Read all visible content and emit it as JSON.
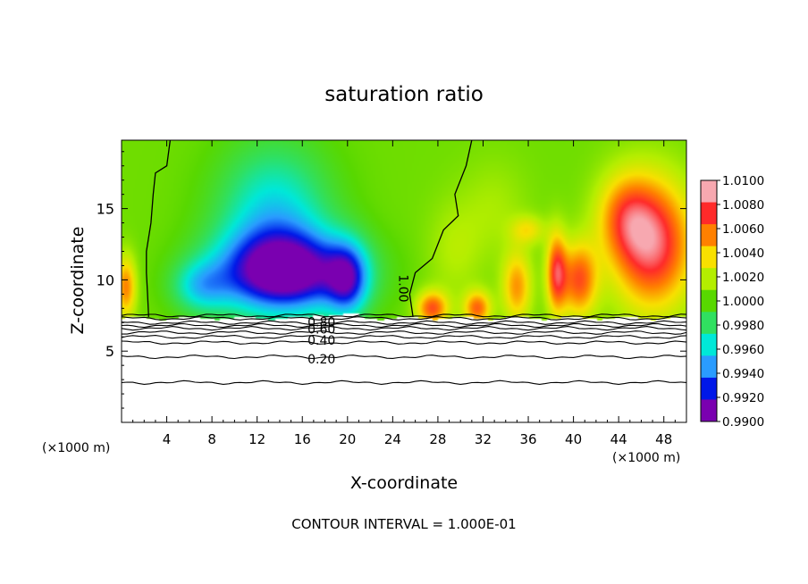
{
  "chart_data": {
    "type": "heatmap",
    "title": "saturation ratio",
    "xlabel": "X-coordinate",
    "ylabel": "Z-coordinate",
    "x_unit_left": "(×1000 m)",
    "x_unit_right": "(×1000 m)",
    "xlim": [
      0,
      50
    ],
    "ylim": [
      0,
      19.8
    ],
    "x_ticks": [
      4,
      8,
      12,
      16,
      20,
      24,
      28,
      32,
      36,
      40,
      44,
      48
    ],
    "y_ticks": [
      5,
      10,
      15
    ],
    "footer": "CONTOUR INTERVAL = 1.000E-01",
    "colorbar": {
      "labels": [
        "1.0100",
        "1.0080",
        "1.0060",
        "1.0040",
        "1.0020",
        "1.0000",
        "0.9980",
        "0.9960",
        "0.9940",
        "0.9920",
        "0.9900"
      ],
      "colors": [
        "#f7a8b0",
        "#ff2a2a",
        "#ff8000",
        "#f8e000",
        "#b4ee00",
        "#58d800",
        "#30e060",
        "#00e8d8",
        "#2a9cff",
        "#0018e8",
        "#7a00b0"
      ]
    },
    "contour_labels": [
      {
        "text": "0.80",
        "x": 17.7,
        "z": 7.0
      },
      {
        "text": "0.60",
        "x": 17.7,
        "z": 6.5
      },
      {
        "text": "0.40",
        "x": 17.7,
        "z": 5.7
      },
      {
        "text": "0.20",
        "x": 17.7,
        "z": 4.4
      },
      {
        "text": "1.00",
        "x": 24.9,
        "z": 9.4
      }
    ],
    "contour_lines_z": [
      7.5,
      7.3,
      7.0,
      6.8,
      6.6,
      6.3,
      6.0,
      5.6,
      4.6,
      2.8
    ],
    "saturation_base_z": 7.3,
    "blobs": [
      {
        "x": 14.5,
        "z": 10.5,
        "rx": 6.0,
        "rz": 2.8,
        "v": -0.011
      },
      {
        "x": 13.5,
        "z": 14.5,
        "rx": 5.0,
        "rz": 5.0,
        "v": -0.005
      },
      {
        "x": 20.0,
        "z": 10.0,
        "rx": 1.8,
        "rz": 2.5,
        "v": -0.0065
      },
      {
        "x": 7.0,
        "z": 9.5,
        "rx": 2.5,
        "rz": 1.8,
        "v": -0.004
      },
      {
        "x": 47.0,
        "z": 12.5,
        "rx": 3.5,
        "rz": 4.5,
        "v": 0.0085
      },
      {
        "x": 44.5,
        "z": 14.5,
        "rx": 2.5,
        "rz": 3.0,
        "v": 0.004
      },
      {
        "x": 40.5,
        "z": 10.0,
        "rx": 1.6,
        "rz": 2.6,
        "v": 0.0065
      },
      {
        "x": 38.5,
        "z": 10.5,
        "rx": 0.9,
        "rz": 2.8,
        "v": 0.007
      },
      {
        "x": 35.0,
        "z": 9.5,
        "rx": 1.3,
        "rz": 2.5,
        "v": 0.005
      },
      {
        "x": 31.5,
        "z": 8.0,
        "rx": 1.2,
        "rz": 1.2,
        "v": 0.006
      },
      {
        "x": 27.5,
        "z": 8.0,
        "rx": 1.4,
        "rz": 1.2,
        "v": 0.0065
      },
      {
        "x": 36.0,
        "z": 13.5,
        "rx": 1.5,
        "rz": 1.0,
        "v": 0.003
      },
      {
        "x": 0.4,
        "z": 9.5,
        "rx": 0.9,
        "rz": 2.2,
        "v": 0.0055
      },
      {
        "x": 29.5,
        "z": 12.0,
        "rx": 2.5,
        "rz": 3.5,
        "v": 0.0015
      },
      {
        "x": 33.0,
        "z": 15.0,
        "rx": 3.0,
        "rz": 3.5,
        "v": 0.0012
      }
    ],
    "unit_contour_left": [
      [
        4.3,
        19.8
      ],
      [
        4.0,
        18.0
      ],
      [
        3.0,
        17.5
      ],
      [
        2.8,
        16.0
      ],
      [
        2.6,
        14.0
      ],
      [
        2.2,
        12.0
      ],
      [
        2.2,
        10.5
      ],
      [
        2.3,
        9.0
      ],
      [
        2.4,
        7.4
      ]
    ],
    "unit_contour_mid": [
      [
        31.0,
        19.8
      ],
      [
        30.5,
        18.0
      ],
      [
        29.5,
        16.0
      ],
      [
        29.8,
        14.5
      ],
      [
        28.5,
        13.5
      ],
      [
        27.5,
        11.5
      ],
      [
        26.0,
        10.5
      ],
      [
        25.5,
        9.0
      ],
      [
        25.8,
        7.4
      ]
    ]
  }
}
